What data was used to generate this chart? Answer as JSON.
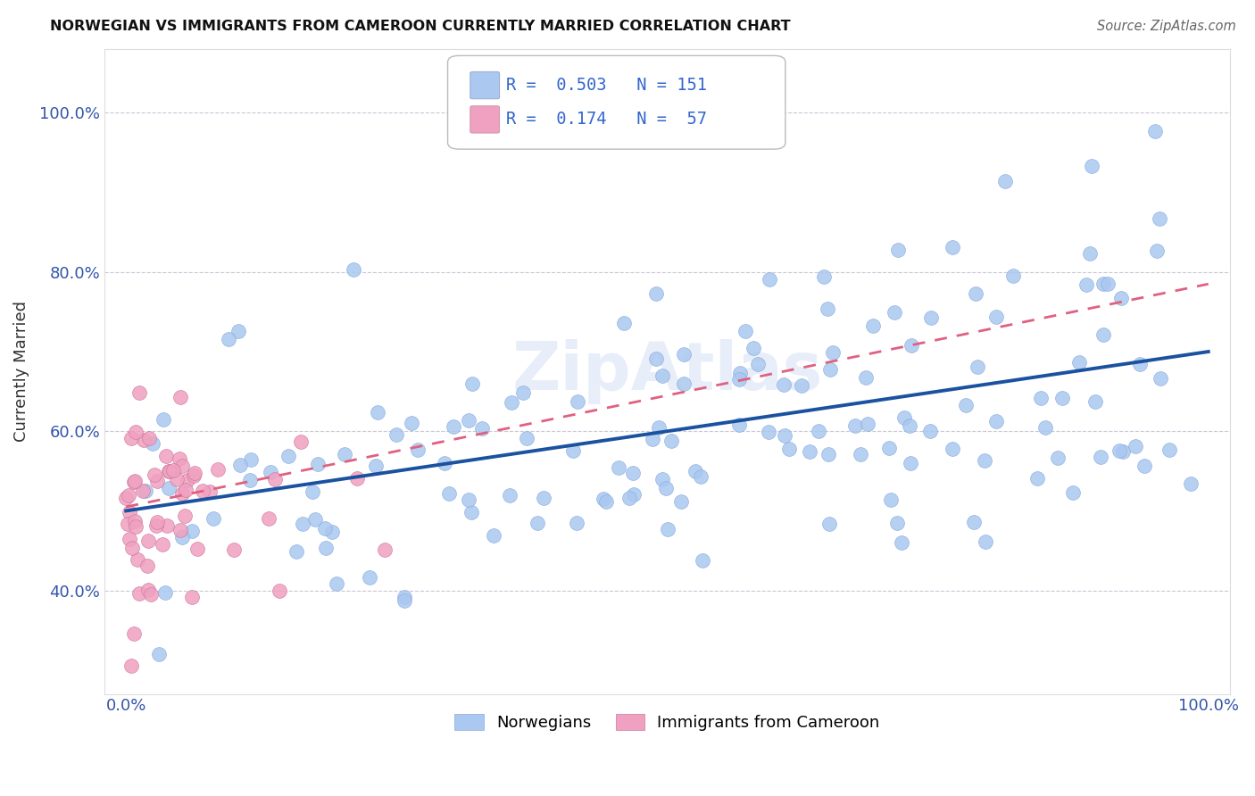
{
  "title": "NORWEGIAN VS IMMIGRANTS FROM CAMEROON CURRENTLY MARRIED CORRELATION CHART",
  "source": "Source: ZipAtlas.com",
  "ylabel": "Currently Married",
  "xlim": [
    -0.02,
    1.02
  ],
  "ylim": [
    0.27,
    1.08
  ],
  "yticks": [
    0.4,
    0.6,
    0.8,
    1.0
  ],
  "ytick_labels": [
    "40.0%",
    "60.0%",
    "80.0%",
    "100.0%"
  ],
  "xticks": [
    0.0,
    1.0
  ],
  "xtick_labels": [
    "0.0%",
    "100.0%"
  ],
  "color_norwegian": "#aac8f0",
  "color_cameroon": "#f0a0c0",
  "color_line_norwegian": "#1a52a0",
  "color_line_cameroon": "#e06080",
  "color_legend_text": "#3366cc",
  "background_color": "#ffffff",
  "grid_color": "#c8c8d8",
  "watermark": "ZipAtlas"
}
